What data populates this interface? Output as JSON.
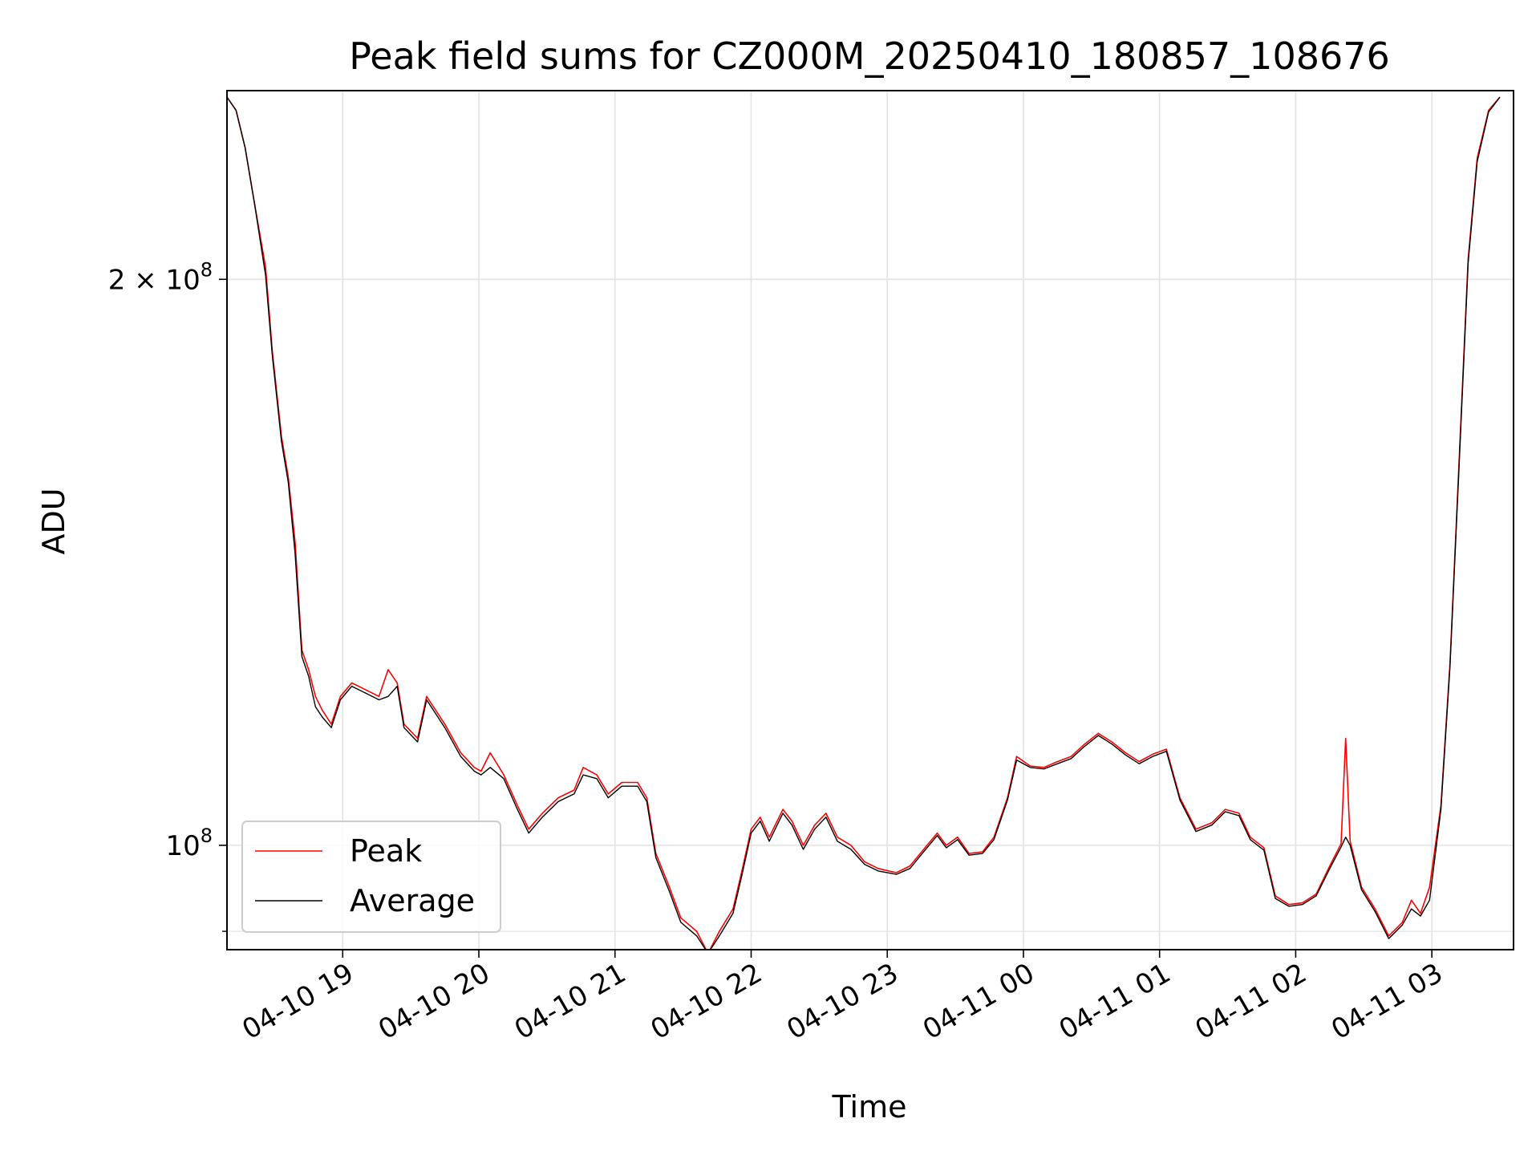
{
  "chart_data": {
    "type": "line",
    "title": "Peak field sums for CZ000M_20250410_180857_108676",
    "xlabel": "Time",
    "ylabel": "ADU",
    "y_scale": "log",
    "ylim": [
      88000000,
      252000000
    ],
    "xlim": [
      "2025-04-10 18:09",
      "2025-04-11 03:36"
    ],
    "y_ticks": [
      {
        "value": 200000000,
        "base": "2 × 10",
        "exp": "8"
      },
      {
        "value": 100000000,
        "base": "10",
        "exp": "8"
      }
    ],
    "x_ticks": [
      {
        "value": "2025-04-10 19:00",
        "label": "04-10 19"
      },
      {
        "value": "2025-04-10 20:00",
        "label": "04-10 20"
      },
      {
        "value": "2025-04-10 21:00",
        "label": "04-10 21"
      },
      {
        "value": "2025-04-10 22:00",
        "label": "04-10 22"
      },
      {
        "value": "2025-04-10 23:00",
        "label": "04-10 23"
      },
      {
        "value": "2025-04-11 00:00",
        "label": "04-11 00"
      },
      {
        "value": "2025-04-11 01:00",
        "label": "04-11 01"
      },
      {
        "value": "2025-04-11 02:00",
        "label": "04-11 02"
      },
      {
        "value": "2025-04-11 03:00",
        "label": "04-11 03"
      }
    ],
    "grid": true,
    "legend_position": "lower-left",
    "series": [
      {
        "name": "Peak",
        "color": "#ff0000",
        "points": [
          [
            "2025-04-10 18:09",
            250000000
          ],
          [
            "2025-04-10 18:13",
            246000000
          ],
          [
            "2025-04-10 18:17",
            235000000
          ],
          [
            "2025-04-10 18:21",
            220000000
          ],
          [
            "2025-04-10 18:26",
            203000000
          ],
          [
            "2025-04-10 18:29",
            183000000
          ],
          [
            "2025-04-10 18:33",
            165000000
          ],
          [
            "2025-04-10 18:36",
            157000000
          ],
          [
            "2025-04-10 18:39",
            145000000
          ],
          [
            "2025-04-10 18:42",
            127000000
          ],
          [
            "2025-04-10 18:45",
            124000000
          ],
          [
            "2025-04-10 18:48",
            120000000
          ],
          [
            "2025-04-10 18:51",
            118000000
          ],
          [
            "2025-04-10 18:55",
            116000000
          ],
          [
            "2025-04-10 18:59",
            120000000
          ],
          [
            "2025-04-10 19:04",
            122000000
          ],
          [
            "2025-04-10 19:10",
            121000000
          ],
          [
            "2025-04-10 19:16",
            120000000
          ],
          [
            "2025-04-10 19:20",
            124000000
          ],
          [
            "2025-04-10 19:24",
            122000000
          ],
          [
            "2025-04-10 19:27",
            116000000
          ],
          [
            "2025-04-10 19:33",
            114000000
          ],
          [
            "2025-04-10 19:37",
            120000000
          ],
          [
            "2025-04-10 19:45",
            116000000
          ],
          [
            "2025-04-10 19:52",
            112000000
          ],
          [
            "2025-04-10 19:58",
            110000000
          ],
          [
            "2025-04-10 20:01",
            109500000
          ],
          [
            "2025-04-10 20:05",
            112000000
          ],
          [
            "2025-04-10 20:11",
            109000000
          ],
          [
            "2025-04-10 20:17",
            105000000
          ],
          [
            "2025-04-10 20:22",
            102000000
          ],
          [
            "2025-04-10 20:28",
            104000000
          ],
          [
            "2025-04-10 20:35",
            106000000
          ],
          [
            "2025-04-10 20:42",
            107000000
          ],
          [
            "2025-04-10 20:46",
            110000000
          ],
          [
            "2025-04-10 20:52",
            109000000
          ],
          [
            "2025-04-10 20:57",
            106500000
          ],
          [
            "2025-04-10 21:03",
            108000000
          ],
          [
            "2025-04-10 21:10",
            108000000
          ],
          [
            "2025-04-10 21:14",
            106000000
          ],
          [
            "2025-04-10 21:18",
            99000000
          ],
          [
            "2025-04-10 21:24",
            95000000
          ],
          [
            "2025-04-10 21:29",
            91500000
          ],
          [
            "2025-04-10 21:36",
            90000000
          ],
          [
            "2025-04-10 21:41",
            87600000
          ],
          [
            "2025-04-10 21:46",
            90000000
          ],
          [
            "2025-04-10 21:52",
            92500000
          ],
          [
            "2025-04-10 21:56",
            97000000
          ],
          [
            "2025-04-10 22:00",
            102000000
          ],
          [
            "2025-04-10 22:04",
            103500000
          ],
          [
            "2025-04-10 22:08",
            101000000
          ],
          [
            "2025-04-10 22:14",
            104500000
          ],
          [
            "2025-04-10 22:18",
            103000000
          ],
          [
            "2025-04-10 22:23",
            100000000
          ],
          [
            "2025-04-10 22:28",
            102500000
          ],
          [
            "2025-04-10 22:33",
            104000000
          ],
          [
            "2025-04-10 22:38",
            101000000
          ],
          [
            "2025-04-10 22:44",
            100000000
          ],
          [
            "2025-04-10 22:50",
            98000000
          ],
          [
            "2025-04-10 22:56",
            97200000
          ],
          [
            "2025-04-10 23:04",
            96700000
          ],
          [
            "2025-04-10 23:10",
            97500000
          ],
          [
            "2025-04-10 23:16",
            99500000
          ],
          [
            "2025-04-10 23:22",
            101500000
          ],
          [
            "2025-04-10 23:26",
            100000000
          ],
          [
            "2025-04-10 23:31",
            101000000
          ],
          [
            "2025-04-10 23:36",
            99000000
          ],
          [
            "2025-04-10 23:42",
            99200000
          ],
          [
            "2025-04-10 23:47",
            101000000
          ],
          [
            "2025-04-10 23:53",
            106000000
          ],
          [
            "2025-04-10 23:57",
            111500000
          ],
          [
            "2025-04-11 00:03",
            110200000
          ],
          [
            "2025-04-11 00:09",
            110000000
          ],
          [
            "2025-04-11 00:15",
            110800000
          ],
          [
            "2025-04-11 00:21",
            111500000
          ],
          [
            "2025-04-11 00:27",
            113200000
          ],
          [
            "2025-04-11 00:33",
            114700000
          ],
          [
            "2025-04-11 00:39",
            113500000
          ],
          [
            "2025-04-11 00:45",
            112000000
          ],
          [
            "2025-04-11 00:51",
            110800000
          ],
          [
            "2025-04-11 00:57",
            111800000
          ],
          [
            "2025-04-11 01:03",
            112500000
          ],
          [
            "2025-04-11 01:09",
            106000000
          ],
          [
            "2025-04-11 01:16",
            102000000
          ],
          [
            "2025-04-11 01:23",
            102800000
          ],
          [
            "2025-04-11 01:29",
            104500000
          ],
          [
            "2025-04-11 01:35",
            104000000
          ],
          [
            "2025-04-11 01:40",
            101000000
          ],
          [
            "2025-04-11 01:46",
            99700000
          ],
          [
            "2025-04-11 01:51",
            94000000
          ],
          [
            "2025-04-11 01:57",
            93000000
          ],
          [
            "2025-04-11 02:03",
            93200000
          ],
          [
            "2025-04-11 02:09",
            94200000
          ],
          [
            "2025-04-11 02:15",
            97500000
          ],
          [
            "2025-04-11 02:20",
            100200000
          ],
          [
            "2025-04-11 02:22",
            114000000
          ],
          [
            "2025-04-11 02:24",
            100500000
          ],
          [
            "2025-04-11 02:29",
            95000000
          ],
          [
            "2025-04-11 02:35",
            92500000
          ],
          [
            "2025-04-11 02:41",
            89500000
          ],
          [
            "2025-04-11 02:47",
            91000000
          ],
          [
            "2025-04-11 02:51",
            93500000
          ],
          [
            "2025-04-11 02:55",
            92000000
          ],
          [
            "2025-04-11 02:59",
            95000000
          ],
          [
            "2025-04-11 03:04",
            105000000
          ],
          [
            "2025-04-11 03:08",
            125000000
          ],
          [
            "2025-04-11 03:12",
            160000000
          ],
          [
            "2025-04-11 03:16",
            205000000
          ],
          [
            "2025-04-11 03:20",
            232000000
          ],
          [
            "2025-04-11 03:25",
            246000000
          ],
          [
            "2025-04-11 03:30",
            250000000
          ]
        ]
      },
      {
        "name": "Average",
        "color": "#000000",
        "points": [
          [
            "2025-04-10 18:09",
            250000000
          ],
          [
            "2025-04-10 18:13",
            246000000
          ],
          [
            "2025-04-10 18:17",
            235000000
          ],
          [
            "2025-04-10 18:21",
            220000000
          ],
          [
            "2025-04-10 18:26",
            201000000
          ],
          [
            "2025-04-10 18:29",
            182000000
          ],
          [
            "2025-04-10 18:33",
            164000000
          ],
          [
            "2025-04-10 18:36",
            156000000
          ],
          [
            "2025-04-10 18:39",
            143000000
          ],
          [
            "2025-04-10 18:42",
            126000000
          ],
          [
            "2025-04-10 18:45",
            123000000
          ],
          [
            "2025-04-10 18:48",
            118500000
          ],
          [
            "2025-04-10 18:51",
            117000000
          ],
          [
            "2025-04-10 18:55",
            115500000
          ],
          [
            "2025-04-10 18:59",
            119500000
          ],
          [
            "2025-04-10 19:04",
            121500000
          ],
          [
            "2025-04-10 19:10",
            120500000
          ],
          [
            "2025-04-10 19:16",
            119500000
          ],
          [
            "2025-04-10 19:20",
            120000000
          ],
          [
            "2025-04-10 19:24",
            121500000
          ],
          [
            "2025-04-10 19:27",
            115500000
          ],
          [
            "2025-04-10 19:33",
            113500000
          ],
          [
            "2025-04-10 19:37",
            119500000
          ],
          [
            "2025-04-10 19:45",
            115500000
          ],
          [
            "2025-04-10 19:52",
            111500000
          ],
          [
            "2025-04-10 19:58",
            109500000
          ],
          [
            "2025-04-10 20:01",
            109000000
          ],
          [
            "2025-04-10 20:05",
            110000000
          ],
          [
            "2025-04-10 20:11",
            108500000
          ],
          [
            "2025-04-10 20:17",
            104500000
          ],
          [
            "2025-04-10 20:22",
            101500000
          ],
          [
            "2025-04-10 20:28",
            103500000
          ],
          [
            "2025-04-10 20:35",
            105500000
          ],
          [
            "2025-04-10 20:42",
            106500000
          ],
          [
            "2025-04-10 20:46",
            109000000
          ],
          [
            "2025-04-10 20:52",
            108500000
          ],
          [
            "2025-04-10 20:57",
            106000000
          ],
          [
            "2025-04-10 21:03",
            107500000
          ],
          [
            "2025-04-10 21:10",
            107500000
          ],
          [
            "2025-04-10 21:14",
            105500000
          ],
          [
            "2025-04-10 21:18",
            98500000
          ],
          [
            "2025-04-10 21:24",
            94500000
          ],
          [
            "2025-04-10 21:29",
            91000000
          ],
          [
            "2025-04-10 21:36",
            89500000
          ],
          [
            "2025-04-10 21:41",
            87600000
          ],
          [
            "2025-04-10 21:46",
            89500000
          ],
          [
            "2025-04-10 21:52",
            92000000
          ],
          [
            "2025-04-10 21:56",
            96500000
          ],
          [
            "2025-04-10 22:00",
            101500000
          ],
          [
            "2025-04-10 22:04",
            103000000
          ],
          [
            "2025-04-10 22:08",
            100500000
          ],
          [
            "2025-04-10 22:14",
            104000000
          ],
          [
            "2025-04-10 22:18",
            102500000
          ],
          [
            "2025-04-10 22:23",
            99500000
          ],
          [
            "2025-04-10 22:28",
            102000000
          ],
          [
            "2025-04-10 22:33",
            103500000
          ],
          [
            "2025-04-10 22:38",
            100500000
          ],
          [
            "2025-04-10 22:44",
            99500000
          ],
          [
            "2025-04-10 22:50",
            97700000
          ],
          [
            "2025-04-10 22:56",
            96900000
          ],
          [
            "2025-04-10 23:04",
            96500000
          ],
          [
            "2025-04-10 23:10",
            97200000
          ],
          [
            "2025-04-10 23:16",
            99200000
          ],
          [
            "2025-04-10 23:22",
            101200000
          ],
          [
            "2025-04-10 23:26",
            99700000
          ],
          [
            "2025-04-10 23:31",
            100700000
          ],
          [
            "2025-04-10 23:36",
            98800000
          ],
          [
            "2025-04-10 23:42",
            99000000
          ],
          [
            "2025-04-10 23:47",
            100700000
          ],
          [
            "2025-04-10 23:53",
            105700000
          ],
          [
            "2025-04-10 23:57",
            111000000
          ],
          [
            "2025-04-11 00:03",
            110000000
          ],
          [
            "2025-04-11 00:09",
            109800000
          ],
          [
            "2025-04-11 00:15",
            110500000
          ],
          [
            "2025-04-11 00:21",
            111200000
          ],
          [
            "2025-04-11 00:27",
            112900000
          ],
          [
            "2025-04-11 00:33",
            114400000
          ],
          [
            "2025-04-11 00:39",
            113200000
          ],
          [
            "2025-04-11 00:45",
            111700000
          ],
          [
            "2025-04-11 00:51",
            110500000
          ],
          [
            "2025-04-11 00:57",
            111500000
          ],
          [
            "2025-04-11 01:03",
            112200000
          ],
          [
            "2025-04-11 01:09",
            105700000
          ],
          [
            "2025-04-11 01:16",
            101700000
          ],
          [
            "2025-04-11 01:23",
            102500000
          ],
          [
            "2025-04-11 01:29",
            104200000
          ],
          [
            "2025-04-11 01:35",
            103700000
          ],
          [
            "2025-04-11 01:40",
            100700000
          ],
          [
            "2025-04-11 01:46",
            99400000
          ],
          [
            "2025-04-11 01:51",
            93700000
          ],
          [
            "2025-04-11 01:57",
            92800000
          ],
          [
            "2025-04-11 02:03",
            93000000
          ],
          [
            "2025-04-11 02:09",
            94000000
          ],
          [
            "2025-04-11 02:15",
            97200000
          ],
          [
            "2025-04-11 02:20",
            99800000
          ],
          [
            "2025-04-11 02:22",
            101000000
          ],
          [
            "2025-04-11 02:24",
            100000000
          ],
          [
            "2025-04-11 02:29",
            94700000
          ],
          [
            "2025-04-11 02:35",
            92200000
          ],
          [
            "2025-04-11 02:41",
            89200000
          ],
          [
            "2025-04-11 02:47",
            90700000
          ],
          [
            "2025-04-11 02:51",
            92500000
          ],
          [
            "2025-04-11 02:55",
            91700000
          ],
          [
            "2025-04-11 02:59",
            93500000
          ],
          [
            "2025-04-11 03:04",
            104500000
          ],
          [
            "2025-04-11 03:08",
            124500000
          ],
          [
            "2025-04-11 03:12",
            159000000
          ],
          [
            "2025-04-11 03:16",
            204000000
          ],
          [
            "2025-04-11 03:20",
            231000000
          ],
          [
            "2025-04-11 03:25",
            245500000
          ],
          [
            "2025-04-11 03:30",
            250000000
          ]
        ]
      }
    ]
  }
}
